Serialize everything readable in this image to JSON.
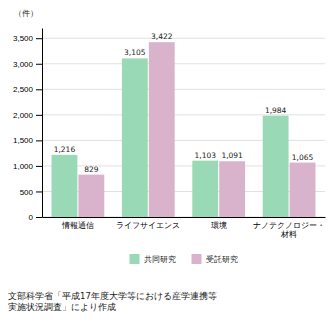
{
  "chart_data": {
    "type": "bar",
    "categories": [
      "情報通信",
      "ライフサイエンス",
      "環境",
      "ナノテクノロジー・\n材料"
    ],
    "series": [
      {
        "name": "共同研究",
        "color": "#99d9b5",
        "values": [
          1216,
          3105,
          1103,
          1984
        ],
        "value_labels": [
          "1,216",
          "3,105",
          "1,103",
          "1,984"
        ]
      },
      {
        "name": "受託研究",
        "color": "#d9b3cc",
        "values": [
          829,
          3422,
          1091,
          1065
        ],
        "value_labels": [
          "829",
          "3,422",
          "1,091",
          "1,065"
        ]
      }
    ],
    "ylim": [
      0,
      3700
    ],
    "yticks": [
      0,
      500,
      {
        "value": 1000,
        "label": "1,000"
      },
      {
        "value": 1500,
        "label": "1,500"
      },
      {
        "value": 2000,
        "label": "2,000"
      },
      {
        "value": 2500,
        "label": "2,500"
      },
      {
        "value": 3000,
        "label": "3,000"
      },
      {
        "value": 3500,
        "label": "3,500"
      }
    ],
    "ylabel": "（件）",
    "footnote": "文部科学省「平成17年度大学等における産学連携等\n実施状況調査」により作成",
    "grid": true,
    "legend": "bottom",
    "data_labels": true
  }
}
